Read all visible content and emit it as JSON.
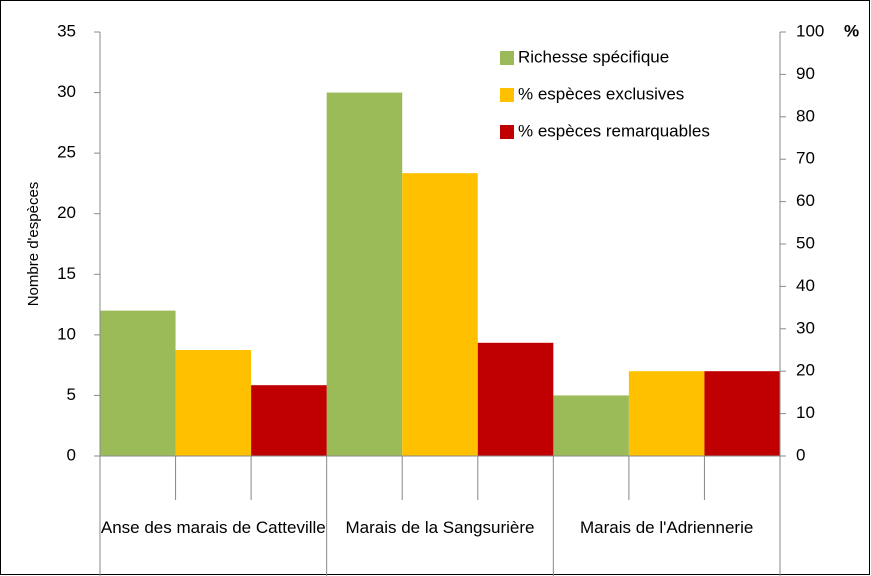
{
  "chart_data": {
    "type": "bar",
    "ylabel": "Nombre d'espèces",
    "y2label": "%",
    "categories": [
      "Anse des marais de Catteville",
      "Marais de la Sangsurière",
      "Marais de l'Adriennerie"
    ],
    "series": [
      {
        "name": "Richesse spécifique",
        "color": "#9bbb59",
        "values": [
          12,
          30,
          5
        ]
      },
      {
        "name": "% espèces exclusives",
        "color": "#ffc000",
        "values": [
          25,
          66.7,
          20
        ],
        "axis": "y2"
      },
      {
        "name": "% espèces remarquables",
        "color": "#c00000",
        "values": [
          16.7,
          26.7,
          20
        ],
        "axis": "y2"
      }
    ],
    "ylim": [
      0,
      35
    ],
    "yticks": [
      0,
      5,
      10,
      15,
      20,
      25,
      30,
      35
    ],
    "y2lim": [
      0,
      100
    ],
    "y2ticks": [
      0,
      10,
      20,
      30,
      40,
      50,
      60,
      70,
      80,
      90,
      100
    ],
    "legend": "upper right",
    "grid": false
  }
}
